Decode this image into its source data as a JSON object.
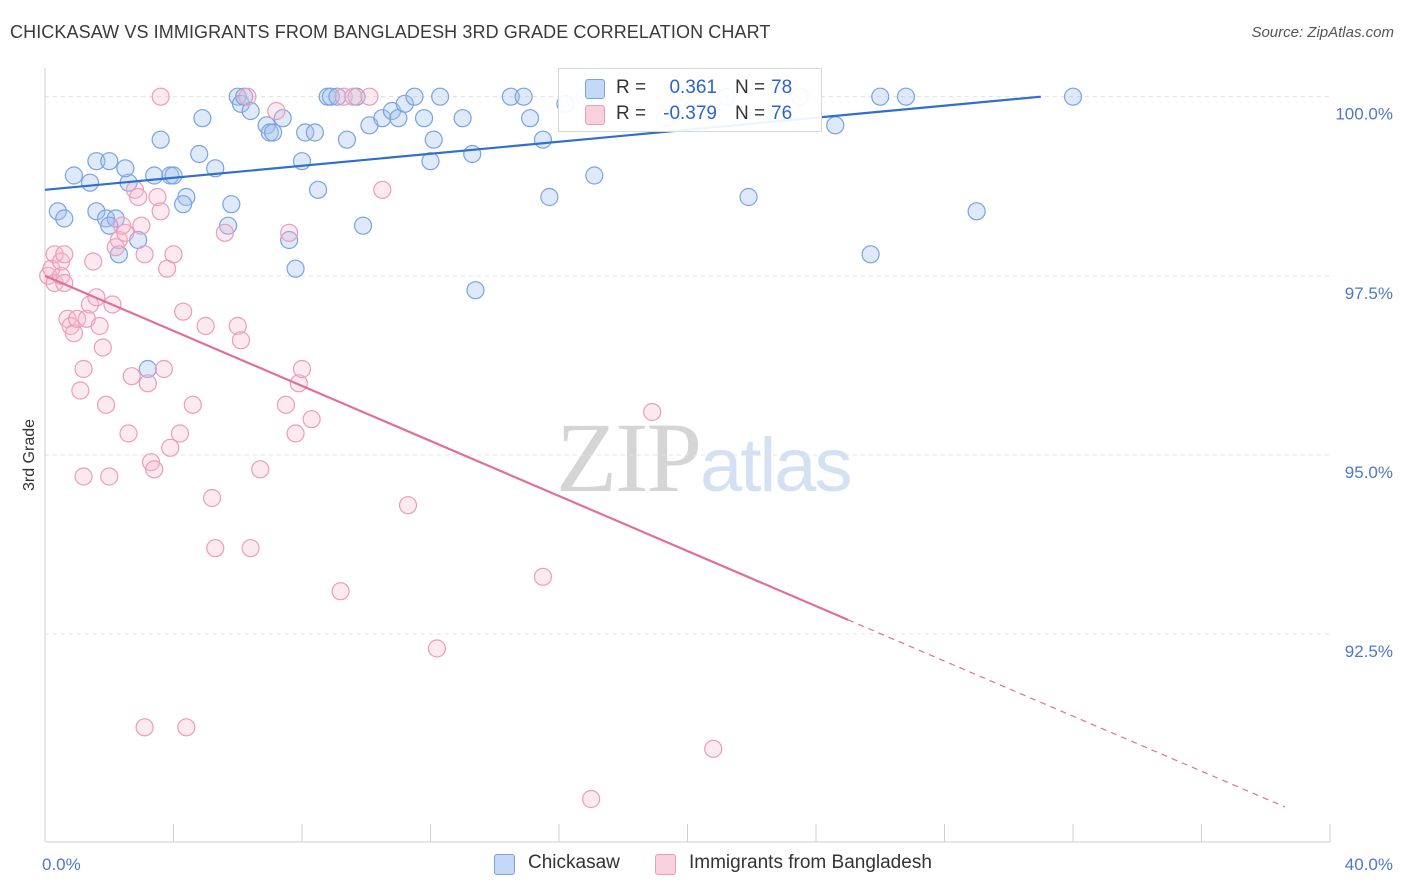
{
  "header": {
    "title": "CHICKASAW VS IMMIGRANTS FROM BANGLADESH 3RD GRADE CORRELATION CHART",
    "source": "Source: ZipAtlas.com"
  },
  "watermark": {
    "zip": "ZIP",
    "atlas": "atlas"
  },
  "stats": [
    {
      "r_label": "R =",
      "r_value": "0.361",
      "n_label": "N =",
      "n_value": "78",
      "color": "#a9c6f1"
    },
    {
      "r_label": "R =",
      "r_value": "-0.379",
      "n_label": "N =",
      "n_value": "76",
      "color": "#f5bcd0"
    }
  ],
  "legend": [
    {
      "label": "Chickasaw",
      "color": "#a9c6f1"
    },
    {
      "label": "Immigrants from Bangladesh",
      "color": "#f5bcd0"
    }
  ],
  "colors": {
    "blue_point_fill": "rgba(160,192,240,0.35)",
    "blue_point_stroke": "#7aa3e0",
    "blue_line": "#2f6fce",
    "pink_point_fill": "rgba(245,185,205,0.30)",
    "pink_point_stroke": "#ec9cb8",
    "pink_line": "#e0709a",
    "grid": "#e3e3e3",
    "tick_label": "#4f78c8"
  },
  "chart_data": {
    "type": "scatter",
    "title": "CHICKASAW VS IMMIGRANTS FROM BANGLADESH 3RD GRADE CORRELATION CHART",
    "xlabel": "",
    "ylabel": "3rd Grade",
    "xlim": [
      0,
      40
    ],
    "ylim": [
      89.6,
      100.4
    ],
    "x_tick_labels": [
      "0.0%",
      "40.0%"
    ],
    "y_ticks": [
      92.5,
      95.0,
      97.5,
      100.0
    ],
    "y_tick_labels": [
      "92.5%",
      "95.0%",
      "97.5%",
      "100.0%"
    ],
    "grid": true,
    "legend_position": "bottom",
    "series": [
      {
        "name": "Chickasaw",
        "r": 0.361,
        "n": 78,
        "trend": {
          "x": [
            0,
            31.0
          ],
          "y": [
            98.7,
            100.0
          ],
          "dashed_x": []
        },
        "points": [
          [
            0.9,
            98.9
          ],
          [
            1.4,
            98.8
          ],
          [
            1.6,
            98.4
          ],
          [
            1.9,
            98.3
          ],
          [
            0.4,
            98.4
          ],
          [
            0.6,
            98.3
          ],
          [
            2.2,
            98.3
          ],
          [
            1.6,
            99.1
          ],
          [
            2.0,
            99.1
          ],
          [
            2.6,
            98.8
          ],
          [
            2.0,
            98.2
          ],
          [
            2.3,
            97.8
          ],
          [
            2.9,
            98.0
          ],
          [
            2.5,
            99.0
          ],
          [
            3.4,
            98.9
          ],
          [
            3.6,
            99.4
          ],
          [
            3.9,
            98.9
          ],
          [
            4.0,
            98.9
          ],
          [
            4.4,
            98.6
          ],
          [
            4.3,
            98.5
          ],
          [
            4.8,
            99.2
          ],
          [
            4.9,
            99.7
          ],
          [
            5.3,
            99.0
          ],
          [
            5.7,
            98.2
          ],
          [
            5.8,
            98.5
          ],
          [
            6.0,
            100.0
          ],
          [
            6.1,
            99.9
          ],
          [
            6.2,
            100.0
          ],
          [
            6.4,
            99.8
          ],
          [
            6.9,
            99.6
          ],
          [
            7.0,
            99.5
          ],
          [
            7.1,
            99.5
          ],
          [
            7.4,
            99.7
          ],
          [
            7.6,
            98.0
          ],
          [
            7.8,
            97.6
          ],
          [
            8.0,
            99.1
          ],
          [
            8.1,
            99.5
          ],
          [
            8.4,
            99.5
          ],
          [
            8.5,
            98.7
          ],
          [
            8.8,
            100.0
          ],
          [
            8.9,
            100.0
          ],
          [
            9.1,
            100.0
          ],
          [
            9.4,
            99.4
          ],
          [
            9.7,
            100.0
          ],
          [
            9.9,
            98.2
          ],
          [
            10.1,
            99.6
          ],
          [
            10.5,
            99.7
          ],
          [
            10.8,
            99.8
          ],
          [
            11.0,
            99.7
          ],
          [
            11.2,
            99.9
          ],
          [
            11.5,
            100.0
          ],
          [
            11.8,
            99.7
          ],
          [
            12.0,
            99.1
          ],
          [
            12.1,
            99.4
          ],
          [
            12.3,
            100.0
          ],
          [
            13.0,
            99.7
          ],
          [
            13.3,
            99.2
          ],
          [
            13.4,
            97.3
          ],
          [
            14.5,
            100.0
          ],
          [
            14.9,
            100.0
          ],
          [
            15.1,
            99.7
          ],
          [
            15.5,
            99.4
          ],
          [
            15.7,
            98.6
          ],
          [
            16.2,
            99.9
          ],
          [
            16.8,
            100.0
          ],
          [
            17.1,
            98.9
          ],
          [
            19.3,
            99.7
          ],
          [
            19.8,
            100.0
          ],
          [
            21.2,
            100.0
          ],
          [
            21.9,
            98.6
          ],
          [
            23.5,
            100.0
          ],
          [
            24.6,
            99.6
          ],
          [
            26.0,
            100.0
          ],
          [
            26.8,
            100.0
          ],
          [
            29.0,
            98.4
          ],
          [
            32.0,
            100.0
          ],
          [
            25.7,
            97.8
          ],
          [
            3.2,
            96.2
          ]
        ]
      },
      {
        "name": "Immigrants from Bangladesh",
        "r": -0.379,
        "n": 76,
        "trend": {
          "x": [
            0,
            25.0
          ],
          "y": [
            97.5,
            92.7
          ],
          "dashed_x": [
            25.0,
            38.6
          ]
        },
        "points": [
          [
            0.1,
            97.5
          ],
          [
            0.2,
            97.6
          ],
          [
            0.3,
            97.8
          ],
          [
            0.3,
            97.4
          ],
          [
            0.5,
            97.5
          ],
          [
            0.5,
            97.7
          ],
          [
            0.6,
            97.8
          ],
          [
            0.6,
            97.4
          ],
          [
            0.7,
            96.9
          ],
          [
            0.8,
            96.8
          ],
          [
            0.9,
            96.7
          ],
          [
            1.0,
            96.9
          ],
          [
            1.1,
            95.9
          ],
          [
            1.2,
            96.2
          ],
          [
            1.3,
            96.9
          ],
          [
            1.4,
            97.1
          ],
          [
            1.5,
            97.7
          ],
          [
            1.6,
            97.2
          ],
          [
            1.7,
            96.8
          ],
          [
            1.8,
            96.5
          ],
          [
            1.9,
            95.7
          ],
          [
            2.0,
            94.7
          ],
          [
            2.1,
            97.1
          ],
          [
            2.2,
            97.9
          ],
          [
            2.3,
            98.0
          ],
          [
            2.5,
            98.1
          ],
          [
            2.6,
            95.3
          ],
          [
            2.7,
            96.1
          ],
          [
            2.8,
            98.7
          ],
          [
            2.9,
            98.6
          ],
          [
            3.0,
            98.2
          ],
          [
            3.1,
            97.8
          ],
          [
            3.2,
            96.0
          ],
          [
            3.3,
            94.9
          ],
          [
            3.4,
            94.8
          ],
          [
            3.5,
            98.6
          ],
          [
            3.6,
            98.4
          ],
          [
            3.7,
            96.2
          ],
          [
            3.8,
            97.6
          ],
          [
            3.9,
            95.1
          ],
          [
            4.0,
            97.8
          ],
          [
            4.2,
            95.3
          ],
          [
            4.3,
            97.0
          ],
          [
            4.6,
            95.7
          ],
          [
            5.0,
            96.8
          ],
          [
            5.2,
            94.4
          ],
          [
            5.3,
            93.7
          ],
          [
            5.6,
            98.1
          ],
          [
            6.0,
            96.8
          ],
          [
            6.1,
            96.6
          ],
          [
            6.4,
            93.7
          ],
          [
            6.7,
            94.8
          ],
          [
            7.2,
            99.8
          ],
          [
            7.5,
            95.7
          ],
          [
            7.6,
            98.1
          ],
          [
            7.8,
            95.3
          ],
          [
            7.9,
            96.0
          ],
          [
            8.0,
            96.2
          ],
          [
            8.3,
            95.5
          ],
          [
            9.2,
            93.1
          ],
          [
            9.3,
            100.0
          ],
          [
            9.6,
            100.0
          ],
          [
            10.1,
            100.0
          ],
          [
            10.5,
            98.7
          ],
          [
            11.3,
            94.3
          ],
          [
            12.2,
            92.3
          ],
          [
            15.5,
            93.3
          ],
          [
            17.0,
            90.2
          ],
          [
            18.9,
            95.6
          ],
          [
            20.8,
            90.9
          ],
          [
            3.1,
            91.2
          ],
          [
            4.4,
            91.2
          ],
          [
            3.6,
            100.0
          ],
          [
            1.2,
            94.7
          ],
          [
            6.3,
            100.0
          ],
          [
            2.4,
            98.2
          ]
        ]
      }
    ]
  }
}
